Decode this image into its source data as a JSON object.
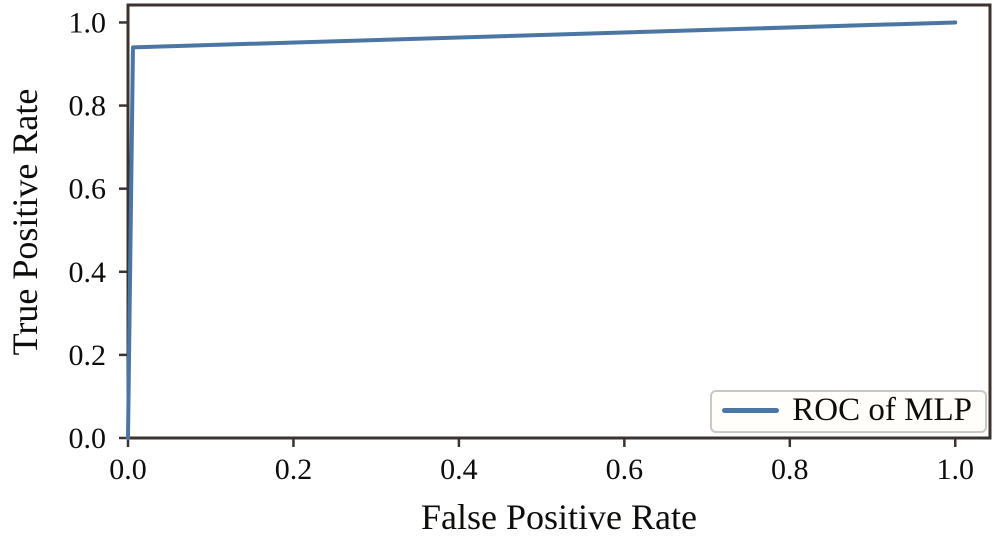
{
  "figure": {
    "background": "#ffffff"
  },
  "chart_data": {
    "type": "line",
    "title": "",
    "xlabel": "False Positive Rate",
    "ylabel": "True Positive Rate",
    "xlim": [
      0,
      1.042
    ],
    "ylim": [
      0,
      1.042
    ],
    "xticks": [
      0.0,
      0.2,
      0.4,
      0.6,
      0.8,
      1.0
    ],
    "yticks": [
      0.0,
      0.2,
      0.4,
      0.6,
      0.8,
      1.0
    ],
    "xtick_labels": [
      "0.0",
      "0.2",
      "0.4",
      "0.6",
      "0.8",
      "1.0"
    ],
    "ytick_labels": [
      "0.0",
      "0.2",
      "0.4",
      "0.6",
      "0.8",
      "1.0"
    ],
    "grid": false,
    "axis_color": "#3b3330",
    "text_color": "#0e0d0b",
    "legend": {
      "position": "lower right",
      "entries": [
        {
          "label": "ROC of MLP",
          "color": "#4b76a4"
        }
      ]
    },
    "series": [
      {
        "name": "ROC of MLP",
        "color": "#4b76a4",
        "linewidth": 4,
        "x": [
          0.0,
          0.006,
          1.0
        ],
        "y": [
          0.0,
          0.94,
          1.0
        ]
      }
    ]
  }
}
